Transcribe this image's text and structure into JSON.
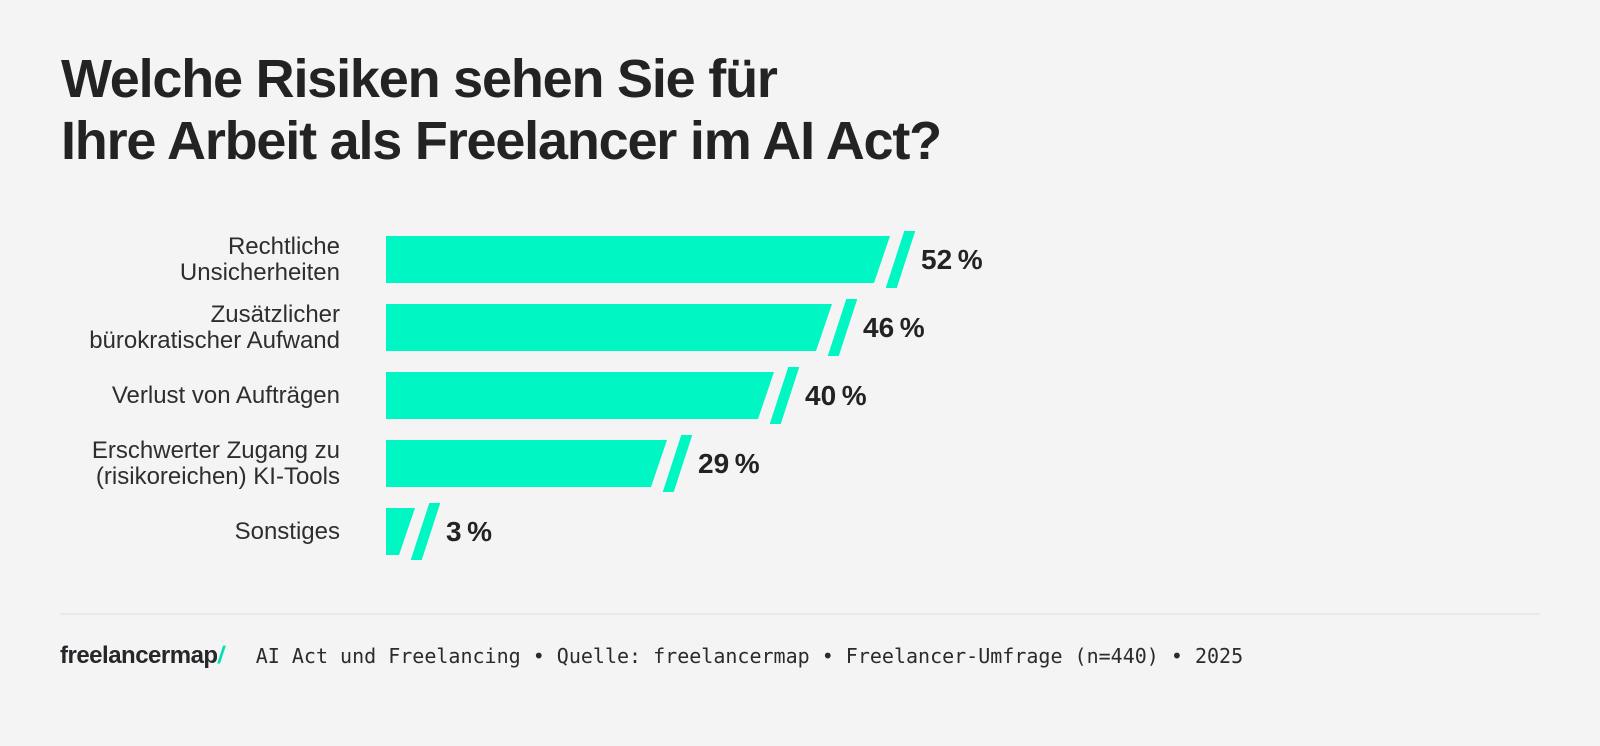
{
  "header": {
    "line1": "Welche Risiken sehen Sie für",
    "line2": "Ihre Arbeit als Freelancer im AI Act?"
  },
  "chart_data": {
    "type": "bar",
    "orientation": "horizontal",
    "title": "Welche Risiken sehen Sie für Ihre Arbeit als Freelancer im AI Act?",
    "unit": "%",
    "xlim": [
      0,
      55
    ],
    "grid": false,
    "categories": [
      "Rechtliche Unsicherheiten",
      "Zusätzlicher bürokratischer Aufwand",
      "Verlust von Aufträgen",
      "Erschwerter Zugang zu (risikoreichen) KI-Tools",
      "Sonstiges"
    ],
    "display_labels": [
      "Rechtliche\nUnsicherheiten",
      "Zusätzlicher\nbürokratischer Aufwand",
      "Verlust von Aufträgen",
      "Erschwerter Zugang zu\n(risikoreichen) KI-Tools",
      "Sonstiges"
    ],
    "values": [
      52,
      46,
      40,
      29,
      3
    ],
    "value_labels": [
      "52 %",
      "46 %",
      "40 %",
      "29 %",
      "3 %"
    ]
  },
  "colors": {
    "accent": "#00F6C3",
    "background": "#F4F4F4",
    "text_dark": "#232323",
    "divider": "#E9E9E9"
  },
  "footer": {
    "logo_text": "freelancermap",
    "logo_slash": "/",
    "source_text": "AI Act und Freelancing • Quelle: freelancermap • Freelancer-Umfrage (n=440) • 2025"
  }
}
